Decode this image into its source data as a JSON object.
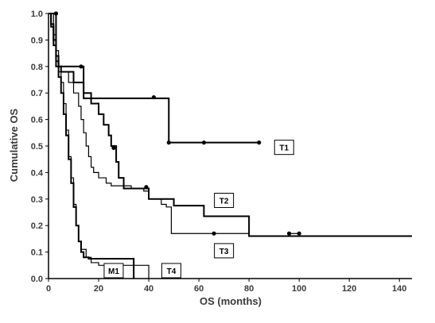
{
  "chart_data": {
    "type": "line",
    "title": "",
    "xlabel": "OS (months)",
    "ylabel": "Cumulative OS",
    "xlim": [
      0,
      145
    ],
    "ylim": [
      0,
      1.0
    ],
    "xticks": [
      0,
      20,
      40,
      60,
      80,
      100,
      120,
      140
    ],
    "yticks": [
      0.0,
      0.1,
      0.2,
      0.3,
      0.4,
      0.5,
      0.6,
      0.7,
      0.8,
      0.9,
      1.0
    ],
    "grid": false,
    "series": [
      {
        "name": "T1",
        "style": "step",
        "width": 2,
        "points": [
          [
            0,
            1.0
          ],
          [
            3,
            1.0
          ],
          [
            3,
            0.8
          ],
          [
            14,
            0.8
          ],
          [
            14,
            0.68
          ],
          [
            48,
            0.68
          ],
          [
            48,
            0.513
          ],
          [
            84,
            0.513
          ]
        ],
        "censored": [
          [
            3,
            1.0
          ],
          [
            13,
            0.8
          ],
          [
            42,
            0.684
          ],
          [
            48,
            0.513
          ],
          [
            62,
            0.513
          ],
          [
            84,
            0.513
          ]
        ]
      },
      {
        "name": "T2",
        "style": "step",
        "width": 2,
        "points": [
          [
            0,
            1.0
          ],
          [
            1,
            0.96
          ],
          [
            2,
            0.9
          ],
          [
            3,
            0.84
          ],
          [
            4,
            0.8
          ],
          [
            5,
            0.78
          ],
          [
            10,
            0.78
          ],
          [
            10,
            0.74
          ],
          [
            14,
            0.74
          ],
          [
            14,
            0.7
          ],
          [
            17,
            0.7
          ],
          [
            17,
            0.66
          ],
          [
            20,
            0.66
          ],
          [
            20,
            0.62
          ],
          [
            22,
            0.62
          ],
          [
            22,
            0.58
          ],
          [
            24,
            0.58
          ],
          [
            24,
            0.54
          ],
          [
            25,
            0.54
          ],
          [
            25,
            0.5
          ],
          [
            27,
            0.5
          ],
          [
            27,
            0.44
          ],
          [
            28,
            0.44
          ],
          [
            28,
            0.38
          ],
          [
            30,
            0.38
          ],
          [
            30,
            0.34
          ],
          [
            40,
            0.34
          ],
          [
            40,
            0.3
          ],
          [
            50,
            0.3
          ],
          [
            50,
            0.275
          ],
          [
            62,
            0.275
          ],
          [
            62,
            0.235
          ],
          [
            80,
            0.235
          ],
          [
            80,
            0.16
          ],
          [
            145,
            0.16
          ]
        ],
        "censored": [
          [
            26,
            0.493
          ],
          [
            39,
            0.345
          ]
        ]
      },
      {
        "name": "T3",
        "style": "step",
        "width": 1.2,
        "points": [
          [
            0,
            1.0
          ],
          [
            1,
            0.95
          ],
          [
            2,
            0.9
          ],
          [
            3,
            0.84
          ],
          [
            4,
            0.78
          ],
          [
            8,
            0.74
          ],
          [
            10,
            0.7
          ],
          [
            12,
            0.65
          ],
          [
            13,
            0.6
          ],
          [
            14,
            0.55
          ],
          [
            15,
            0.5
          ],
          [
            16,
            0.46
          ],
          [
            17,
            0.42
          ],
          [
            18,
            0.4
          ],
          [
            20,
            0.38
          ],
          [
            23,
            0.36
          ],
          [
            25,
            0.35
          ],
          [
            33,
            0.34
          ],
          [
            38,
            0.33
          ],
          [
            40,
            0.3
          ],
          [
            45,
            0.28
          ],
          [
            47,
            0.27
          ],
          [
            49,
            0.17
          ],
          [
            66,
            0.17
          ],
          [
            80,
            0.17
          ],
          [
            80,
            0.16
          ],
          [
            96,
            0.17
          ],
          [
            100,
            0.17
          ]
        ],
        "censored": [
          [
            66,
            0.17
          ],
          [
            96,
            0.17
          ],
          [
            100,
            0.17
          ]
        ]
      },
      {
        "name": "T4",
        "style": "step",
        "width": 1.2,
        "points": [
          [
            0,
            1.0
          ],
          [
            2,
            0.92
          ],
          [
            3,
            0.86
          ],
          [
            4,
            0.8
          ],
          [
            5,
            0.74
          ],
          [
            6,
            0.66
          ],
          [
            7,
            0.56
          ],
          [
            8,
            0.46
          ],
          [
            9,
            0.38
          ],
          [
            10,
            0.28
          ],
          [
            11,
            0.2
          ],
          [
            12,
            0.14
          ],
          [
            13,
            0.11
          ],
          [
            15,
            0.08
          ],
          [
            17,
            0.06
          ],
          [
            20,
            0.05
          ],
          [
            30,
            0.05
          ],
          [
            35,
            0.05
          ],
          [
            40,
            0.0
          ]
        ],
        "censored": []
      },
      {
        "name": "M1",
        "style": "step",
        "width": 2,
        "points": [
          [
            0,
            1.0
          ],
          [
            1,
            0.95
          ],
          [
            2,
            0.88
          ],
          [
            3,
            0.82
          ],
          [
            4,
            0.76
          ],
          [
            5,
            0.7
          ],
          [
            6,
            0.62
          ],
          [
            7,
            0.54
          ],
          [
            8,
            0.45
          ],
          [
            9,
            0.36
          ],
          [
            10,
            0.27
          ],
          [
            11,
            0.2
          ],
          [
            12,
            0.14
          ],
          [
            13,
            0.1
          ],
          [
            14,
            0.08
          ],
          [
            16,
            0.075
          ],
          [
            34,
            0.075
          ],
          [
            34,
            0.0
          ]
        ],
        "censored": []
      }
    ],
    "labels": [
      {
        "text": "T1",
        "x": 94,
        "y": 0.495
      },
      {
        "text": "T2",
        "x": 70,
        "y": 0.295
      },
      {
        "text": "T3",
        "x": 70,
        "y": 0.105
      },
      {
        "text": "M1",
        "x": 26,
        "y": 0.03
      },
      {
        "text": "T4",
        "x": 49,
        "y": 0.03
      }
    ]
  }
}
